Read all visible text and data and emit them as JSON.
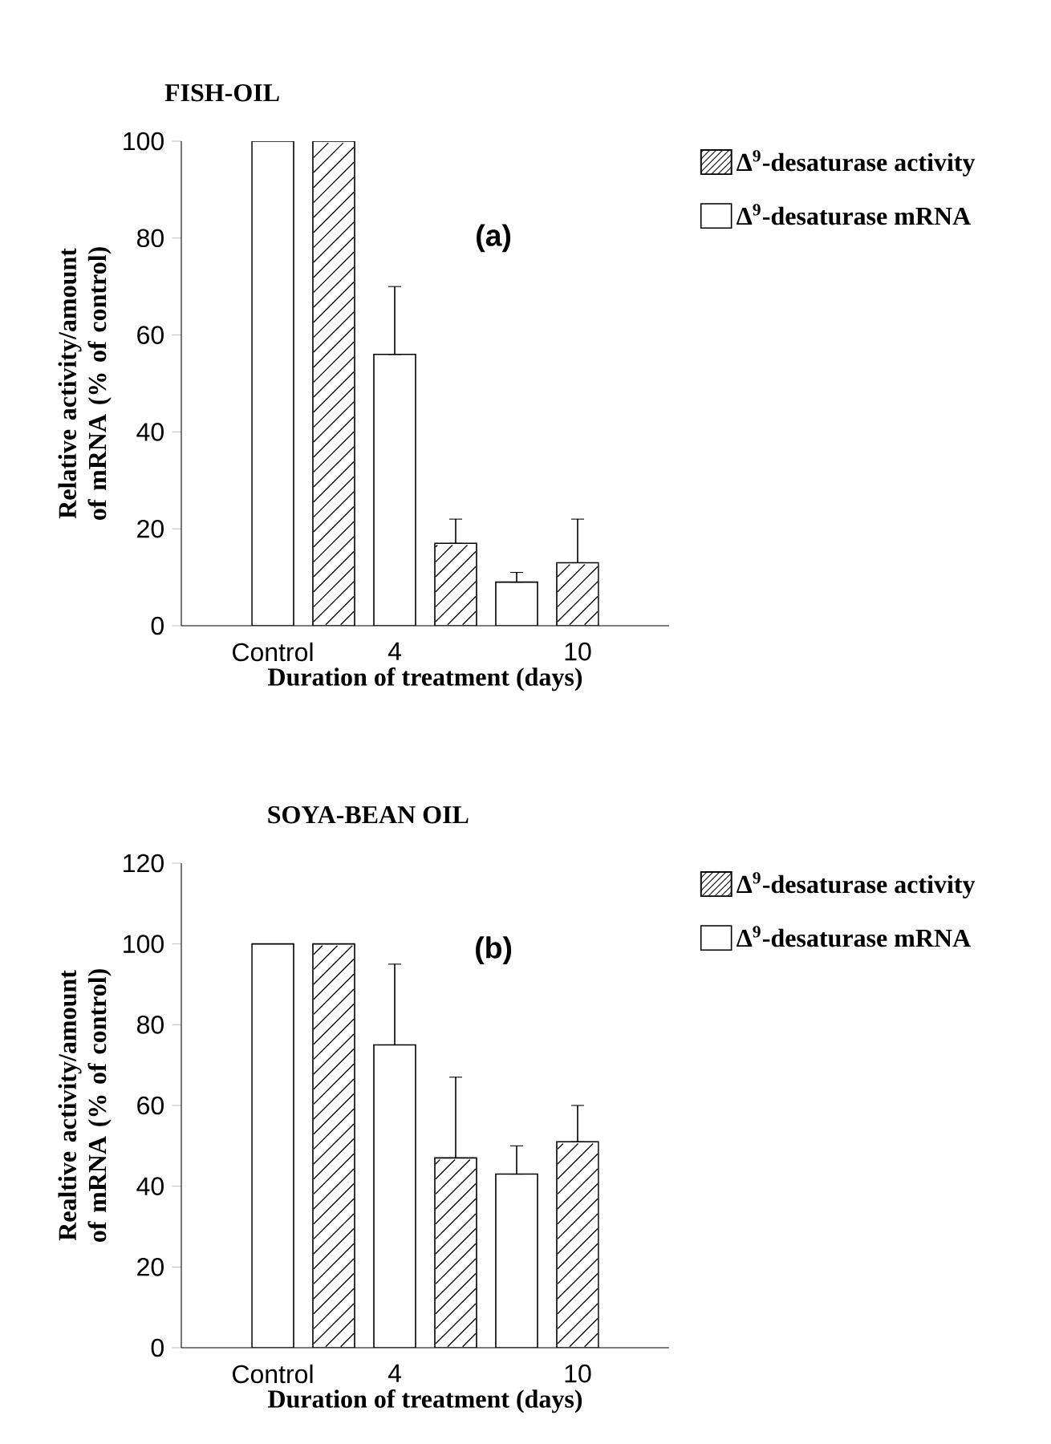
{
  "chart_data": [
    {
      "type": "bar",
      "title": "FISH-OIL",
      "xlabel": "Duration of treatment (days)",
      "ylabel": "Relative activity/amount of mRNA (% of control)",
      "categories": [
        "Control",
        null,
        "4",
        null,
        null,
        "10"
      ],
      "series": [
        {
          "name": "Δ$^{9}$-desaturase activity",
          "color": "#000000",
          "values": [
            null,
            100,
            null,
            17,
            null,
            13
          ],
          "errors": [
            null,
            null,
            null,
            [
              17,
              22
            ],
            null,
            [
              13,
              22
            ]
          ]
        },
        {
          "name": "Δ$^{9}$-desaturase mRNA",
          "color": "#ffffff",
          "values": [
            100,
            null,
            56,
            null,
            9,
            null
          ],
          "errors": [
            null,
            null,
            [
              56,
              70
            ],
            null,
            [
              9,
              11
            ],
            null
          ]
        }
      ],
      "ylim": [
        0,
        100
      ],
      "yticks": [
        0,
        20,
        40,
        60,
        80,
        100
      ],
      "legend": "top right",
      "annotations": [
        "(a)"
      ]
    },
    {
      "type": "bar",
      "title": "SOYA-BEAN OIL",
      "xlabel": "Duration of treatment (days)",
      "ylabel": "Realtive activity/amount of mRNA (% of control)",
      "categories": [
        "Control",
        null,
        "4",
        null,
        null,
        "10"
      ],
      "series": [
        {
          "name": "Δ$^{9}$-desaturase activity",
          "color": "#000000",
          "values": [
            null,
            100,
            null,
            47,
            null,
            51
          ],
          "errors": [
            null,
            null,
            null,
            [
              47,
              67
            ],
            null,
            [
              51,
              60
            ]
          ]
        },
        {
          "name": "Δ$^{9}$-desaturase mRNA",
          "color": "#ffffff",
          "values": [
            100,
            null,
            75,
            null,
            43,
            null
          ],
          "errors": [
            null,
            null,
            [
              75,
              95
            ],
            null,
            [
              43,
              50
            ],
            null
          ]
        }
      ],
      "ylim": [
        0,
        120
      ],
      "yticks": [
        0,
        20,
        40,
        60,
        80,
        100,
        120
      ],
      "legend": "top right",
      "annotations": [
        "(b)"
      ]
    }
  ]
}
